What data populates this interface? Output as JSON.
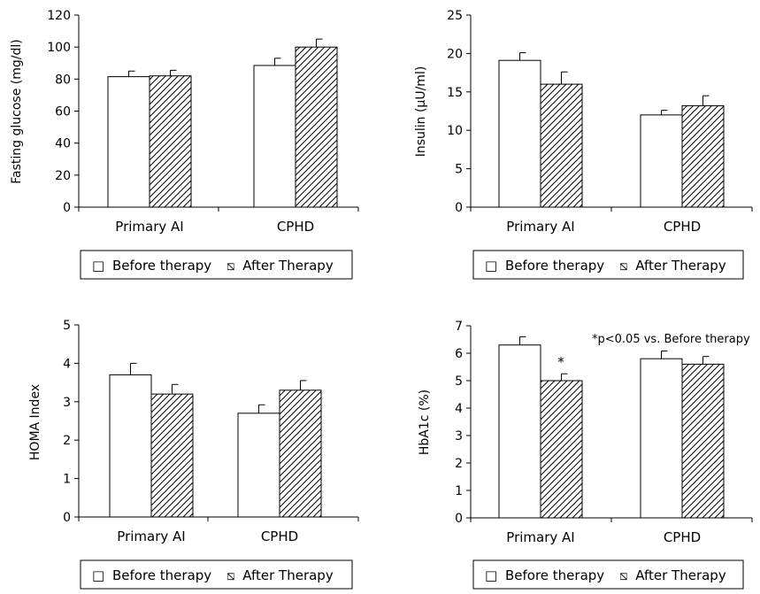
{
  "legend": {
    "before_label": "Before therapy",
    "after_label": "After Therapy",
    "before_symbol": "□",
    "after_symbol": "⧅"
  },
  "colors": {
    "before_fill": "#ffffff",
    "after_hatch": "#000000",
    "axis": "#000000"
  },
  "chart_data": [
    {
      "type": "bar",
      "title": "",
      "xlabel": "",
      "ylabel": "Fasting glucose (mg/dl)",
      "ylim": [
        0,
        120
      ],
      "yticks": [
        0,
        20,
        40,
        60,
        80,
        100,
        120
      ],
      "categories": [
        "Primary AI",
        "CPHD"
      ],
      "series": [
        {
          "name": "Before therapy",
          "values": [
            81.5,
            88.5
          ],
          "errors": [
            3.5,
            4.5
          ]
        },
        {
          "name": "After Therapy",
          "values": [
            82,
            100
          ],
          "errors": [
            3.5,
            5
          ]
        }
      ],
      "annotations": [],
      "legend_position": "bottom"
    },
    {
      "type": "bar",
      "title": "",
      "xlabel": "",
      "ylabel": "Insulin (μU/ml)",
      "ylim": [
        0,
        25
      ],
      "yticks": [
        0,
        5,
        10,
        15,
        20,
        25
      ],
      "categories": [
        "Primary AI",
        "CPHD"
      ],
      "series": [
        {
          "name": "Before therapy",
          "values": [
            19.1,
            12
          ],
          "errors": [
            1,
            0.6
          ]
        },
        {
          "name": "After Therapy",
          "values": [
            16,
            13.2
          ],
          "errors": [
            1.6,
            1.3
          ]
        }
      ],
      "annotations": [],
      "legend_position": "bottom"
    },
    {
      "type": "bar",
      "title": "",
      "xlabel": "",
      "ylabel": "HOMA Index",
      "ylim": [
        0,
        5
      ],
      "yticks": [
        0,
        1,
        2,
        3,
        4,
        5
      ],
      "categories": [
        "Primary AI",
        "CPHD"
      ],
      "series": [
        {
          "name": "Before therapy",
          "values": [
            3.7,
            2.7
          ],
          "errors": [
            0.3,
            0.22
          ]
        },
        {
          "name": "After Therapy",
          "values": [
            3.2,
            3.3
          ],
          "errors": [
            0.25,
            0.25
          ]
        }
      ],
      "annotations": [],
      "legend_position": "bottom"
    },
    {
      "type": "bar",
      "title": "",
      "xlabel": "",
      "ylabel": "HbA1c  (%)",
      "ylim": [
        0,
        7
      ],
      "yticks": [
        0,
        1,
        2,
        3,
        4,
        5,
        6,
        7
      ],
      "categories": [
        "Primary AI",
        "CPHD"
      ],
      "series": [
        {
          "name": "Before therapy",
          "values": [
            6.3,
            5.8
          ],
          "errors": [
            0.3,
            0.28
          ]
        },
        {
          "name": "After Therapy",
          "values": [
            5,
            5.6
          ],
          "errors": [
            0.25,
            0.28
          ]
        }
      ],
      "annotations": [
        {
          "text": "*p<0.05 vs. Before therapy"
        },
        {
          "text": "*"
        }
      ],
      "legend_position": "bottom"
    }
  ]
}
